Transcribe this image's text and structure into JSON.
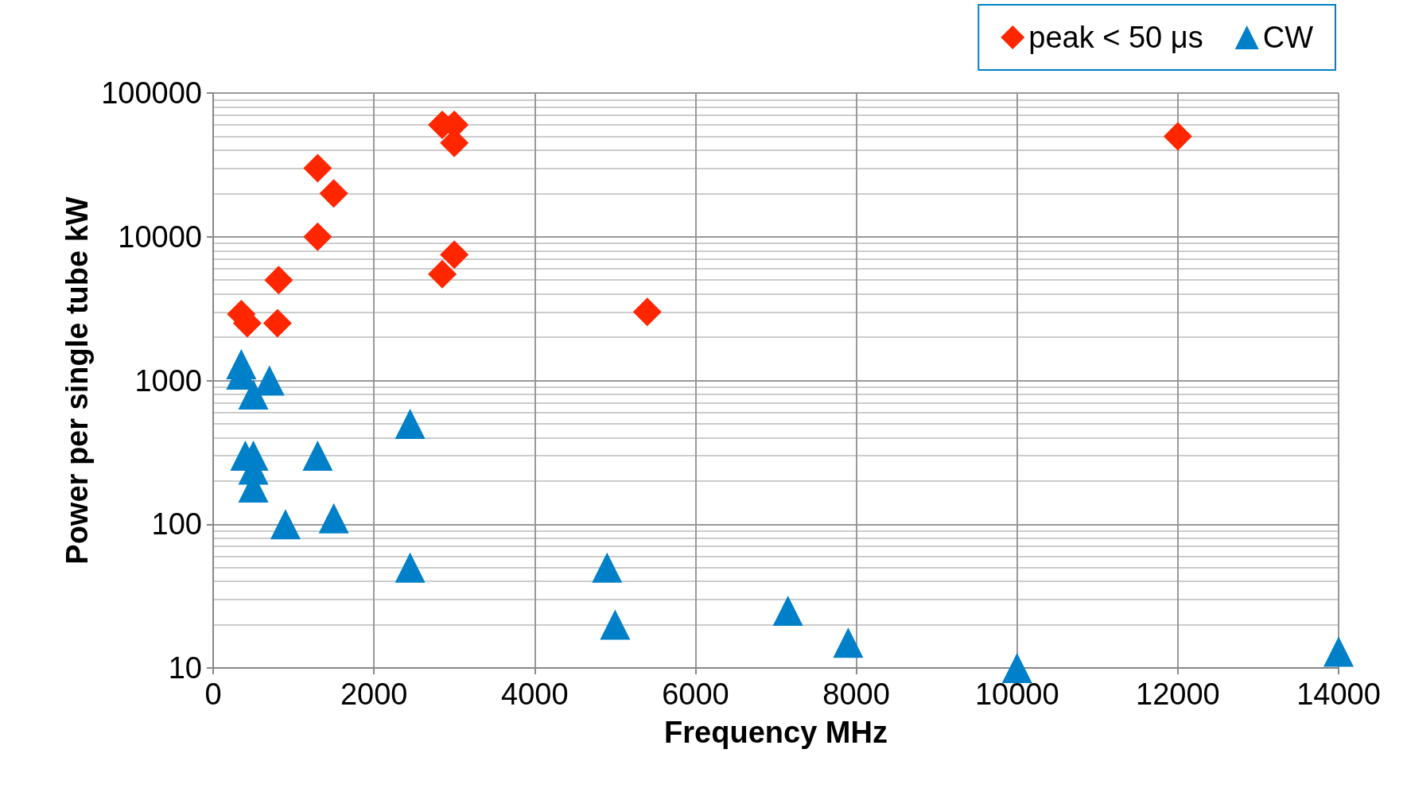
{
  "chart_data": {
    "type": "scatter",
    "xlabel": "Frequency MHz",
    "ylabel": "Power per single tube kW",
    "log": "y",
    "xlim": [
      0,
      14000
    ],
    "xticks": [
      0,
      2000,
      4000,
      6000,
      8000,
      10000,
      12000,
      14000
    ],
    "ylim": [
      10,
      100000
    ],
    "yticks": [
      10,
      100,
      1000,
      10000,
      100000
    ],
    "grid": true,
    "legend": "top right",
    "series": [
      {
        "name": "peak < 50 μs",
        "color": "#ff2600",
        "marker": "diamond",
        "x": [
          350,
          424,
          815,
          800,
          1300,
          1500,
          1300,
          2850,
          3000,
          3000,
          2850,
          3000,
          5400,
          12000
        ],
        "values": [
          2900,
          2500,
          5000,
          2500,
          30000,
          20000,
          10000,
          60000,
          60000,
          45000,
          5500,
          7500,
          3000,
          50000
        ]
      },
      {
        "name": "CW",
        "color": "#0080c8",
        "marker": "triangle",
        "x": [
          350,
          350,
          500,
          700,
          400,
          500,
          500,
          500,
          900,
          1500,
          1300,
          2450,
          2450,
          4900,
          5000,
          7150,
          7900,
          10000,
          14000
        ],
        "values": [
          1300,
          1100,
          800,
          1000,
          300,
          300,
          240,
          180,
          100,
          110,
          300,
          500,
          50,
          50,
          20,
          25,
          15,
          10,
          13
        ]
      }
    ]
  }
}
